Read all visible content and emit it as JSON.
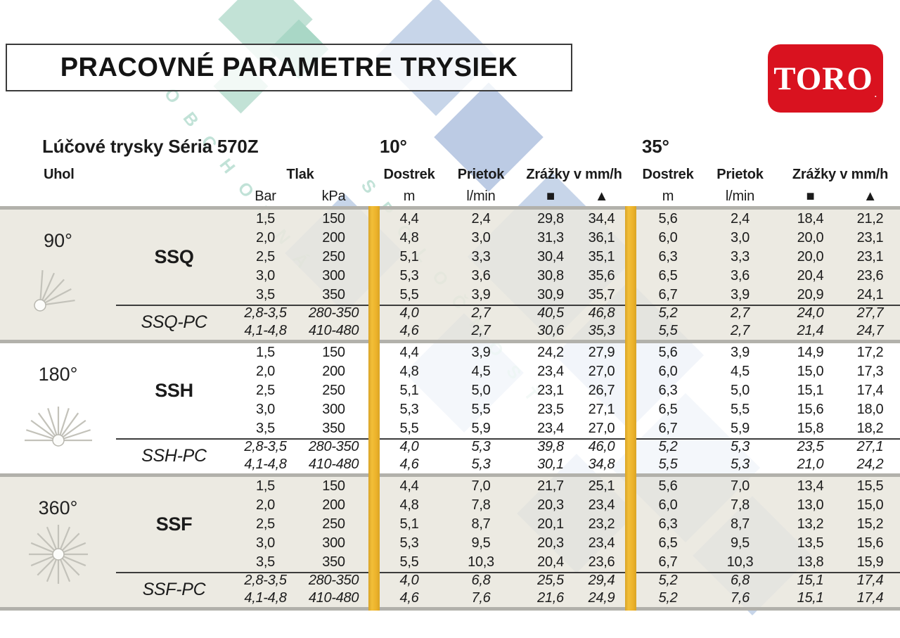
{
  "title": "PRACOVNÉ PARAMETRE TRYSIEK",
  "logo": {
    "text": "TORO",
    "tm": ".",
    "bg_color": "#d9121f"
  },
  "series_label": "Lúčové trysky Séria 570Z",
  "group_headers": {
    "left": "10°",
    "right": "35°"
  },
  "columns": {
    "angle": "Uhol",
    "pressure": "Tlak",
    "bar": "Bar",
    "kpa": "kPa",
    "reach": "Dostrek",
    "flow": "Prietok",
    "precip": "Zrážky v mm/h",
    "m": "m",
    "lmin": "l/min",
    "square_icon": "■",
    "triangle_icon": "▲"
  },
  "watermark": {
    "line1": "OBCHODNÁ",
    "line2": "SPOLOČNOSŤ"
  },
  "colors": {
    "stripe_yellow": "#ecb22a",
    "band_beige": "#e9e7de",
    "separator_gray": "#b2b1ab",
    "logo_red": "#d9121f"
  },
  "sections": [
    {
      "angle": "90°",
      "icon": "spray-90-icon",
      "band": "beige",
      "nozzle": "SSQ",
      "pc_nozzle": "SSQ-PC",
      "rows": [
        [
          "1,5",
          "150",
          "4,4",
          "2,4",
          "29,8",
          "34,4",
          "5,6",
          "2,4",
          "18,4",
          "21,2"
        ],
        [
          "2,0",
          "200",
          "4,8",
          "3,0",
          "31,3",
          "36,1",
          "6,0",
          "3,0",
          "20,0",
          "23,1"
        ],
        [
          "2,5",
          "250",
          "5,1",
          "3,3",
          "30,4",
          "35,1",
          "6,3",
          "3,3",
          "20,0",
          "23,1"
        ],
        [
          "3,0",
          "300",
          "5,3",
          "3,6",
          "30,8",
          "35,6",
          "6,5",
          "3,6",
          "20,4",
          "23,6"
        ],
        [
          "3,5",
          "350",
          "5,5",
          "3,9",
          "30,9",
          "35,7",
          "6,7",
          "3,9",
          "20,9",
          "24,1"
        ]
      ],
      "pc_rows": [
        [
          "2,8-3,5",
          "280-350",
          "4,0",
          "2,7",
          "40,5",
          "46,8",
          "5,2",
          "2,7",
          "24,0",
          "27,7"
        ],
        [
          "4,1-4,8",
          "410-480",
          "4,6",
          "2,7",
          "30,6",
          "35,3",
          "5,5",
          "2,7",
          "21,4",
          "24,7"
        ]
      ]
    },
    {
      "angle": "180°",
      "icon": "spray-180-icon",
      "band": "white",
      "nozzle": "SSH",
      "pc_nozzle": "SSH-PC",
      "rows": [
        [
          "1,5",
          "150",
          "4,4",
          "3,9",
          "24,2",
          "27,9",
          "5,6",
          "3,9",
          "14,9",
          "17,2"
        ],
        [
          "2,0",
          "200",
          "4,8",
          "4,5",
          "23,4",
          "27,0",
          "6,0",
          "4,5",
          "15,0",
          "17,3"
        ],
        [
          "2,5",
          "250",
          "5,1",
          "5,0",
          "23,1",
          "26,7",
          "6,3",
          "5,0",
          "15,1",
          "17,4"
        ],
        [
          "3,0",
          "300",
          "5,3",
          "5,5",
          "23,5",
          "27,1",
          "6,5",
          "5,5",
          "15,6",
          "18,0"
        ],
        [
          "3,5",
          "350",
          "5,5",
          "5,9",
          "23,4",
          "27,0",
          "6,7",
          "5,9",
          "15,8",
          "18,2"
        ]
      ],
      "pc_rows": [
        [
          "2,8-3,5",
          "280-350",
          "4,0",
          "5,3",
          "39,8",
          "46,0",
          "5,2",
          "5,3",
          "23,5",
          "27,1"
        ],
        [
          "4,1-4,8",
          "410-480",
          "4,6",
          "5,3",
          "30,1",
          "34,8",
          "5,5",
          "5,3",
          "21,0",
          "24,2"
        ]
      ]
    },
    {
      "angle": "360°",
      "icon": "spray-360-icon",
      "band": "beige",
      "nozzle": "SSF",
      "pc_nozzle": "SSF-PC",
      "rows": [
        [
          "1,5",
          "150",
          "4,4",
          "7,0",
          "21,7",
          "25,1",
          "5,6",
          "7,0",
          "13,4",
          "15,5"
        ],
        [
          "2,0",
          "200",
          "4,8",
          "7,8",
          "20,3",
          "23,4",
          "6,0",
          "7,8",
          "13,0",
          "15,0"
        ],
        [
          "2,5",
          "250",
          "5,1",
          "8,7",
          "20,1",
          "23,2",
          "6,3",
          "8,7",
          "13,2",
          "15,2"
        ],
        [
          "3,0",
          "300",
          "5,3",
          "9,5",
          "20,3",
          "23,4",
          "6,5",
          "9,5",
          "13,5",
          "15,6"
        ],
        [
          "3,5",
          "350",
          "5,5",
          "10,3",
          "20,4",
          "23,6",
          "6,7",
          "10,3",
          "13,8",
          "15,9"
        ]
      ],
      "pc_rows": [
        [
          "2,8-3,5",
          "280-350",
          "4,0",
          "6,8",
          "25,5",
          "29,4",
          "5,2",
          "6,8",
          "15,1",
          "17,4"
        ],
        [
          "4,1-4,8",
          "410-480",
          "4,6",
          "7,6",
          "21,6",
          "24,9",
          "5,2",
          "7,6",
          "15,1",
          "17,4"
        ]
      ]
    }
  ]
}
